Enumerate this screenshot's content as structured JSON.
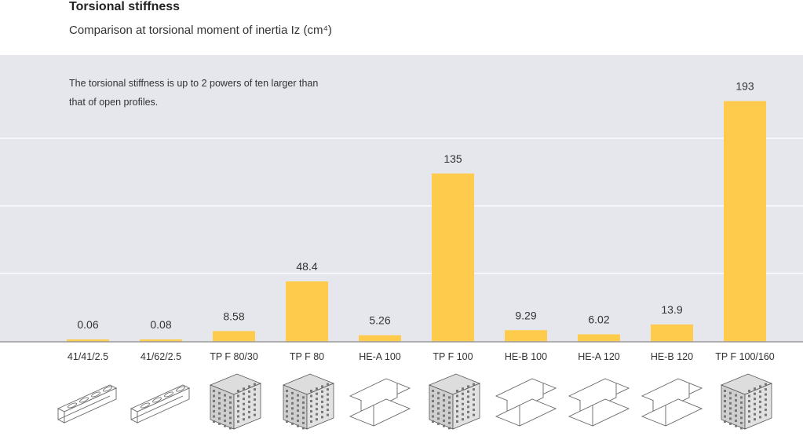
{
  "title": "Torsional stiffness",
  "subtitle": "Comparison at torsional moment of inertia Iz (cm⁴)",
  "note": "The torsional stiffness is up to 2 powers of ten larger than that of open profiles.",
  "colors": {
    "bar": "#FFCB4C",
    "panel": "#E6E7EC",
    "grid": "#FFFFFF",
    "axis": "#9A9A9A"
  },
  "chart_data": {
    "type": "bar",
    "categories": [
      "41/41/2.5",
      "41/62/2.5",
      "TP F 80/30",
      "TP F 80",
      "HE-A 100",
      "TP F 100",
      "HE-B 100",
      "HE-A 120",
      "HE-B 120",
      "TP F 100/160"
    ],
    "values": [
      0.06,
      0.08,
      8.58,
      48.4,
      5.26,
      135,
      9.29,
      6.02,
      13.9,
      193
    ],
    "value_labels": [
      "0.06",
      "0.08",
      "8.58",
      "48.4",
      "5.26",
      "135",
      "9.29",
      "6.02",
      "13.9",
      "193"
    ],
    "profile_icons": [
      "c-channel-slotted-icon",
      "c-channel-slotted-icon",
      "perforated-box-profile-icon",
      "perforated-box-profile-icon",
      "i-beam-icon",
      "perforated-box-profile-icon",
      "i-beam-icon",
      "i-beam-icon",
      "i-beam-icon",
      "perforated-box-profile-icon"
    ],
    "ylim": [
      0,
      230
    ],
    "grid": true,
    "xlabel": "",
    "ylabel": ""
  }
}
